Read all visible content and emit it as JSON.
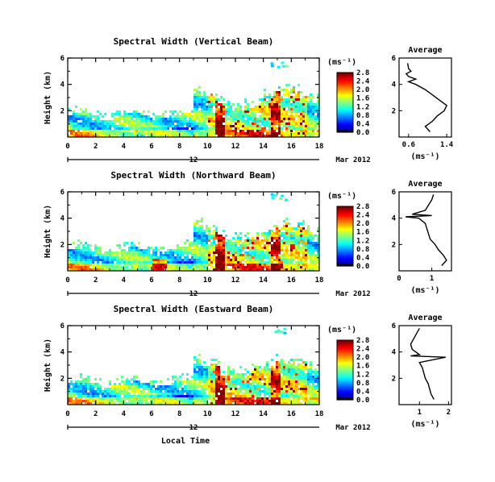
{
  "chart_data": [
    {
      "type": "heatmap",
      "title": "Spectral Width (Vertical Beam)",
      "ylabel": "Height (km)",
      "xlim": [
        0,
        18
      ],
      "ylim": [
        0,
        6
      ],
      "xticks": [
        "0",
        "2",
        "4",
        "6",
        "8",
        "10",
        "12",
        "14",
        "16",
        "18"
      ],
      "yticks": [
        "2",
        "4",
        "6"
      ],
      "date_marker": "12",
      "date_label": "Mar 2012",
      "colorbar": {
        "unit": "(ms⁻¹)",
        "ticks": [
          "0.0",
          "0.4",
          "0.8",
          "1.2",
          "1.6",
          "2.0",
          "2.4",
          "2.8"
        ],
        "range": [
          0,
          2.8
        ]
      },
      "average_profile": {
        "title": "Average",
        "xlabel": "(ms⁻¹)",
        "xticks": [
          "0.6",
          "1.4"
        ],
        "xlim": [
          0.4,
          1.5
        ],
        "yticks": [
          "2",
          "4",
          "6"
        ],
        "ylim": [
          0,
          6
        ],
        "height": [
          0.4,
          0.8,
          1.2,
          1.6,
          2.0,
          2.4,
          2.8,
          3.2,
          3.6,
          4.0,
          4.2,
          4.4,
          4.6,
          4.8,
          5.0,
          5.2,
          5.6
        ],
        "width": [
          1.05,
          0.95,
          1.1,
          1.2,
          1.35,
          1.4,
          1.25,
          1.1,
          0.95,
          0.75,
          0.6,
          0.75,
          0.6,
          0.55,
          0.65,
          0.6,
          0.58
        ]
      }
    },
    {
      "type": "heatmap",
      "title": "Spectral Width (Northward Beam)",
      "ylabel": "Height (km)",
      "xlim": [
        0,
        18
      ],
      "ylim": [
        0,
        6
      ],
      "xticks": [
        "0",
        "2",
        "4",
        "6",
        "8",
        "10",
        "12",
        "14",
        "16",
        "18"
      ],
      "yticks": [
        "2",
        "4",
        "6"
      ],
      "date_marker": "12",
      "date_label": "Mar 2012",
      "colorbar": {
        "unit": "(ms⁻¹)",
        "ticks": [
          "0.0",
          "0.4",
          "0.8",
          "1.2",
          "1.6",
          "2.0",
          "2.4",
          "2.8"
        ],
        "range": [
          0,
          2.8
        ]
      },
      "average_profile": {
        "title": "Average",
        "xlabel": "(ms⁻¹)",
        "xticks": [
          "0",
          "1"
        ],
        "xlim": [
          0,
          1.6
        ],
        "yticks": [
          "2",
          "4",
          "6"
        ],
        "ylim": [
          0,
          6
        ],
        "height": [
          0.4,
          0.8,
          1.2,
          1.6,
          2.0,
          2.4,
          2.8,
          3.2,
          3.6,
          4.0,
          4.1,
          4.2,
          4.3,
          4.6,
          5.0,
          5.4,
          5.8
        ],
        "width": [
          1.3,
          1.45,
          1.35,
          1.2,
          1.1,
          0.95,
          0.9,
          0.85,
          0.8,
          0.6,
          0.2,
          1.0,
          0.4,
          0.8,
          0.9,
          1.0,
          1.05
        ]
      }
    },
    {
      "type": "heatmap",
      "title": "Spectral Width (Eastward Beam)",
      "ylabel": "Height (km)",
      "xlabel": "Local Time",
      "xlim": [
        0,
        18
      ],
      "ylim": [
        0,
        6
      ],
      "xticks": [
        "0",
        "2",
        "4",
        "6",
        "8",
        "10",
        "12",
        "14",
        "16",
        "18"
      ],
      "yticks": [
        "2",
        "4",
        "6"
      ],
      "date_marker": "12",
      "date_label": "Mar 2012",
      "colorbar": {
        "unit": "(ms⁻¹)",
        "ticks": [
          "0.0",
          "0.4",
          "0.8",
          "1.2",
          "1.6",
          "2.0",
          "2.4",
          "2.8"
        ],
        "range": [
          0,
          2.8
        ]
      },
      "average_profile": {
        "title": "Average",
        "xlabel": "(ms⁻¹)",
        "xticks": [
          "1",
          "2"
        ],
        "xlim": [
          0.3,
          2.1
        ],
        "yticks": [
          "2",
          "4",
          "6"
        ],
        "ylim": [
          0,
          6
        ],
        "height": [
          0.4,
          0.8,
          1.2,
          1.6,
          2.0,
          2.4,
          2.8,
          3.2,
          3.6,
          3.7,
          3.8,
          4.2,
          4.6,
          5.0,
          5.4,
          5.8
        ],
        "width": [
          1.5,
          1.4,
          1.35,
          1.3,
          1.2,
          1.15,
          1.1,
          1.0,
          1.9,
          0.7,
          1.0,
          0.75,
          0.7,
          0.8,
          0.9,
          1.0
        ]
      }
    }
  ]
}
